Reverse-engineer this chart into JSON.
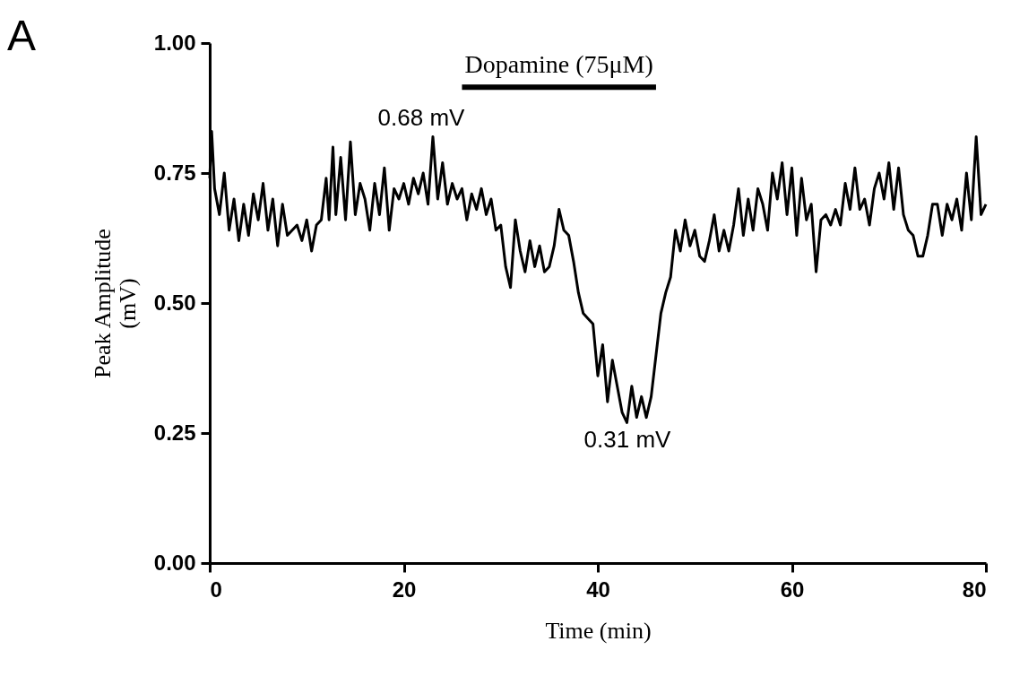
{
  "chart_data": {
    "type": "line",
    "xlabel": "Time (min)",
    "ylabel": "Peak Amplitude (mV)",
    "x": [
      0,
      0.2,
      0.5,
      1,
      1.5,
      2,
      2.5,
      3,
      3.5,
      4,
      4.5,
      5,
      5.5,
      6,
      6.5,
      7,
      7.5,
      8,
      9,
      9.5,
      10,
      10.5,
      11,
      11.5,
      12,
      12.3,
      12.7,
      13,
      13.5,
      14,
      14.5,
      15,
      15.5,
      16,
      16.5,
      17,
      17.5,
      18,
      18.5,
      19,
      19.5,
      20,
      20.5,
      21,
      21.5,
      22,
      22.5,
      23,
      23.5,
      24,
      24.5,
      25,
      25.5,
      26,
      26.5,
      27,
      27.5,
      28,
      28.5,
      29,
      29.5,
      30,
      30.5,
      31,
      31.5,
      32,
      32.5,
      33,
      33.5,
      34,
      34.5,
      35,
      35.5,
      36,
      36.5,
      37,
      37.5,
      38,
      38.5,
      39,
      39.5,
      40,
      40.5,
      41,
      41.5,
      42,
      42.5,
      43,
      43.5,
      44,
      44.5,
      45,
      45.5,
      46,
      46.5,
      47,
      47.5,
      48,
      48.5,
      49,
      49.5,
      50,
      50.5,
      51,
      51.5,
      52,
      52.5,
      53,
      53.5,
      54,
      54.5,
      55,
      55.5,
      56,
      56.5,
      57,
      57.5,
      58,
      58.5,
      59,
      59.5,
      60,
      60.5,
      61,
      61.5,
      62,
      62.5,
      63,
      63.5,
      64,
      64.5,
      65,
      65.5,
      66,
      66.5,
      67,
      67.5,
      68,
      68.5,
      69,
      69.5,
      70,
      70.5,
      71,
      71.5,
      72,
      72.5,
      73,
      73.5,
      74,
      74.5,
      75,
      75.5,
      76,
      76.5,
      77,
      77.5,
      78,
      78.5,
      79,
      79.5,
      80
    ],
    "series": [
      {
        "color": "#000000",
        "values": [
          0.74,
          0.83,
          0.72,
          0.67,
          0.75,
          0.64,
          0.7,
          0.62,
          0.69,
          0.63,
          0.71,
          0.66,
          0.73,
          0.64,
          0.7,
          0.61,
          0.69,
          0.63,
          0.65,
          0.62,
          0.66,
          0.6,
          0.65,
          0.66,
          0.74,
          0.66,
          0.8,
          0.67,
          0.78,
          0.66,
          0.81,
          0.67,
          0.73,
          0.7,
          0.64,
          0.73,
          0.67,
          0.76,
          0.64,
          0.72,
          0.7,
          0.73,
          0.69,
          0.74,
          0.71,
          0.75,
          0.69,
          0.82,
          0.7,
          0.77,
          0.69,
          0.73,
          0.7,
          0.72,
          0.66,
          0.71,
          0.68,
          0.72,
          0.67,
          0.7,
          0.64,
          0.65,
          0.57,
          0.53,
          0.66,
          0.6,
          0.56,
          0.62,
          0.57,
          0.61,
          0.56,
          0.57,
          0.61,
          0.68,
          0.64,
          0.63,
          0.58,
          0.52,
          0.48,
          0.47,
          0.46,
          0.36,
          0.42,
          0.31,
          0.39,
          0.34,
          0.29,
          0.27,
          0.34,
          0.28,
          0.32,
          0.28,
          0.32,
          0.4,
          0.48,
          0.52,
          0.55,
          0.64,
          0.6,
          0.66,
          0.61,
          0.64,
          0.59,
          0.58,
          0.62,
          0.67,
          0.6,
          0.64,
          0.6,
          0.65,
          0.72,
          0.63,
          0.7,
          0.64,
          0.72,
          0.69,
          0.64,
          0.75,
          0.7,
          0.77,
          0.67,
          0.76,
          0.63,
          0.74,
          0.66,
          0.69,
          0.56,
          0.66,
          0.67,
          0.65,
          0.68,
          0.65,
          0.73,
          0.68,
          0.76,
          0.68,
          0.7,
          0.65,
          0.72,
          0.75,
          0.7,
          0.77,
          0.68,
          0.76,
          0.67,
          0.64,
          0.63,
          0.59,
          0.59,
          0.63,
          0.69,
          0.69,
          0.63,
          0.69,
          0.66,
          0.7,
          0.64,
          0.75,
          0.66,
          0.82,
          0.67,
          0.69
        ]
      },
      {
        "name": "Dopamine (75μM)",
        "color": "#000000",
        "x": [
          26,
          46
        ],
        "values": [
          0.915,
          0.915
        ]
      }
    ],
    "xlim": [
      0,
      80
    ],
    "xticks": [
      0,
      20,
      40,
      60,
      80
    ],
    "ylim": [
      0,
      1
    ],
    "yticks": [
      {
        "value": 0,
        "label": "0.00"
      },
      {
        "value": 0.25,
        "label": "0.25"
      },
      {
        "value": 0.5,
        "label": "0.50"
      },
      {
        "value": 0.75,
        "label": "0.75"
      },
      {
        "value": 1,
        "label": "1.00"
      }
    ],
    "annotations": [
      "A",
      "0.68 mV",
      "0.31 mV"
    ],
    "grid": false,
    "marker": "none",
    "line_style": "solid"
  }
}
